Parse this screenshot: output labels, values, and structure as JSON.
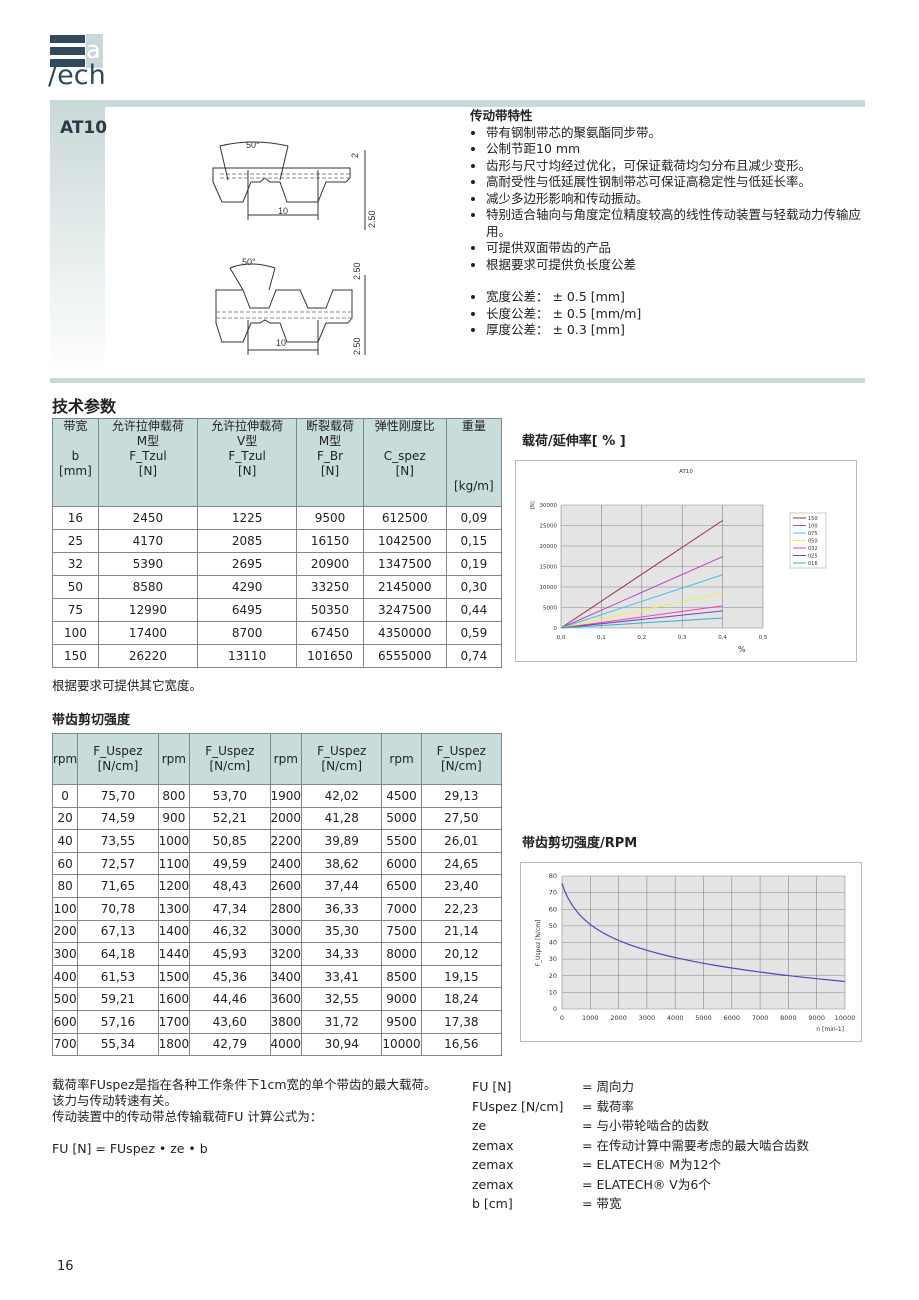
{
  "logo": {
    "text": "lavech",
    "letters_a": "a",
    "letters_ech": "ech"
  },
  "product": "AT10",
  "drawings": {
    "angle": "50°",
    "pitch": "10",
    "thickness_top": "2",
    "tooth_height": "2.50"
  },
  "features": {
    "title": "传动带特性",
    "items": [
      "带有钢制带芯的聚氨酯同步带。",
      "公制节距10 mm",
      "齿形与尺寸均经过优化，可保证载荷均匀分布且减少变形。",
      "高耐受性与低延展性钢制带芯可保证高稳定性与低延长率。",
      "减少多边形影响和传动振动。",
      "特别适合轴向与角度定位精度较高的线性传动装置与轻载动力传输应用。",
      "可提供双面带齿的产品",
      "根据要求可提供负长度公差"
    ],
    "tolerances": [
      "宽度公差：  ± 0.5 [mm]",
      "长度公差：  ± 0.5 [mm/m]",
      "厚度公差：  ± 0.3 [mm]"
    ]
  },
  "tech": {
    "title": "技术参数",
    "headers": [
      "带宽\n\nb\n[mm]",
      "允许拉伸载荷\nM型\nF_Tzul\n[N]",
      "允许拉伸载荷\nV型\nF_Tzul\n[N]",
      "断裂载荷\nM型\nF_Br\n[N]",
      "弹性刚度比\n\nC_spez\n[N]",
      "重量\n\n\n\n[kg/m]"
    ],
    "rows": [
      [
        "16",
        "2450",
        "1225",
        "9500",
        "612500",
        "0,09"
      ],
      [
        "25",
        "4170",
        "2085",
        "16150",
        "1042500",
        "0,15"
      ],
      [
        "32",
        "5390",
        "2695",
        "20900",
        "1347500",
        "0,19"
      ],
      [
        "50",
        "8580",
        "4290",
        "33250",
        "2145000",
        "0,30"
      ],
      [
        "75",
        "12990",
        "6495",
        "50350",
        "3247500",
        "0,44"
      ],
      [
        "100",
        "17400",
        "8700",
        "67450",
        "4350000",
        "0,59"
      ],
      [
        "150",
        "26220",
        "13110",
        "101650",
        "6555000",
        "0,74"
      ]
    ],
    "note": "根据要求可提供其它宽度。"
  },
  "shear": {
    "title": "带齿剪切强度",
    "headers": [
      "rpm",
      "F_Uspez [N/cm]"
    ],
    "rows": [
      [
        "0",
        "75,70",
        "800",
        "53,70",
        "1900",
        "42,02",
        "4500",
        "29,13"
      ],
      [
        "20",
        "74,59",
        "900",
        "52,21",
        "2000",
        "41,28",
        "5000",
        "27,50"
      ],
      [
        "40",
        "73,55",
        "1000",
        "50,85",
        "2200",
        "39,89",
        "5500",
        "26,01"
      ],
      [
        "60",
        "72,57",
        "1100",
        "49,59",
        "2400",
        "38,62",
        "6000",
        "24,65"
      ],
      [
        "80",
        "71,65",
        "1200",
        "48,43",
        "2600",
        "37,44",
        "6500",
        "23,40"
      ],
      [
        "100",
        "70,78",
        "1300",
        "47,34",
        "2800",
        "36,33",
        "7000",
        "22,23"
      ],
      [
        "200",
        "67,13",
        "1400",
        "46,32",
        "3000",
        "35,30",
        "7500",
        "21,14"
      ],
      [
        "300",
        "64,18",
        "1440",
        "45,93",
        "3200",
        "34,33",
        "8000",
        "20,12"
      ],
      [
        "400",
        "61,53",
        "1500",
        "45,36",
        "3400",
        "33,41",
        "8500",
        "19,15"
      ],
      [
        "500",
        "59,21",
        "1600",
        "44,46",
        "3600",
        "32,55",
        "9000",
        "18,24"
      ],
      [
        "600",
        "57,16",
        "1700",
        "43,60",
        "3800",
        "31,72",
        "9500",
        "17,38"
      ],
      [
        "700",
        "55,34",
        "1800",
        "42,79",
        "4000",
        "30,94",
        "10000",
        "16,56"
      ]
    ]
  },
  "chart_data": [
    {
      "type": "line",
      "heading": "载荷/延伸率[ % ]",
      "title": "AT10",
      "xlabel": "%",
      "ylabel": "[N]",
      "xlim": [
        0,
        0.5
      ],
      "ylim": [
        0,
        30000
      ],
      "xticks": [
        "0,0",
        "0,1",
        "0,2",
        "0,3",
        "0,4",
        "0,5"
      ],
      "yticks": [
        "0",
        "5000",
        "10000",
        "15000",
        "20000",
        "25000",
        "30000"
      ],
      "grid": true,
      "legend": "right",
      "series": [
        {
          "name": "150",
          "color": "#a0303a",
          "x": [
            0,
            0.4
          ],
          "y": [
            0,
            26220
          ]
        },
        {
          "name": "100",
          "color": "#c040c8",
          "x": [
            0,
            0.4
          ],
          "y": [
            0,
            17400
          ]
        },
        {
          "name": "075",
          "color": "#40c0f0",
          "x": [
            0,
            0.4
          ],
          "y": [
            0,
            12990
          ]
        },
        {
          "name": "050",
          "color": "#f0f040",
          "x": [
            0,
            0.4
          ],
          "y": [
            0,
            8580
          ]
        },
        {
          "name": "032",
          "color": "#f040b0",
          "x": [
            0,
            0.4
          ],
          "y": [
            0,
            5390
          ]
        },
        {
          "name": "025",
          "color": "#7040c0",
          "x": [
            0,
            0.4
          ],
          "y": [
            0,
            4170
          ]
        },
        {
          "name": "016",
          "color": "#30b0c8",
          "x": [
            0,
            0.4
          ],
          "y": [
            0,
            2450
          ]
        }
      ]
    },
    {
      "type": "line",
      "heading": "带齿剪切强度/RPM",
      "xlabel": "n [min-1]",
      "ylabel": "F_Uspez [N/cm]",
      "xlim": [
        0,
        10000
      ],
      "ylim": [
        0,
        80
      ],
      "xticks": [
        "0",
        "1000",
        "2000",
        "3000",
        "4000",
        "5000",
        "6000",
        "7000",
        "8000",
        "9000",
        "10000"
      ],
      "yticks": [
        "0",
        "10",
        "20",
        "30",
        "40",
        "50",
        "60",
        "70",
        "80"
      ],
      "grid": true,
      "color": "#5a40c0",
      "x": [
        0,
        20,
        40,
        60,
        80,
        100,
        200,
        300,
        400,
        500,
        600,
        700,
        800,
        900,
        1000,
        1100,
        1200,
        1300,
        1400,
        1440,
        1500,
        1600,
        1700,
        1800,
        1900,
        2000,
        2200,
        2400,
        2600,
        2800,
        3000,
        3200,
        3400,
        3600,
        3800,
        4000,
        4500,
        5000,
        5500,
        6000,
        6500,
        7000,
        7500,
        8000,
        8500,
        9000,
        9500,
        10000
      ],
      "y": [
        75.7,
        74.59,
        73.55,
        72.57,
        71.65,
        70.78,
        67.13,
        64.18,
        61.53,
        59.21,
        57.16,
        55.34,
        53.7,
        52.21,
        50.85,
        49.59,
        48.43,
        47.34,
        46.32,
        45.93,
        45.36,
        44.46,
        43.6,
        42.79,
        42.02,
        41.28,
        39.89,
        38.62,
        37.44,
        36.33,
        35.3,
        34.33,
        33.41,
        32.55,
        31.72,
        30.94,
        29.13,
        27.5,
        26.01,
        24.65,
        23.4,
        22.23,
        21.14,
        20.12,
        19.15,
        18.24,
        17.38,
        16.56
      ]
    }
  ],
  "explain": {
    "left": [
      "载荷率FUspez是指在各种工作条件下1cm宽的单个带齿的最大载荷。",
      "该力与传动转速有关。",
      "传动装置中的传动带总传输载荷FU 计算公式为：",
      "FU [N] = FUspez •  ze •  b"
    ],
    "legend": [
      [
        "FU [N]",
        "= 周向力"
      ],
      [
        "FUspez [N/cm]",
        "= 载荷率"
      ],
      [
        "ze",
        "= 与小带轮啮合的齿数"
      ],
      [
        "zemax",
        "= 在传动计算中需要考虑的最大啮合齿数"
      ],
      [
        "zemax",
        "= ELATECH® M为12个"
      ],
      [
        "zemax",
        "= ELATECH® V为6个"
      ],
      [
        "b [cm]",
        "= 带宽"
      ]
    ]
  },
  "page_number": "16"
}
